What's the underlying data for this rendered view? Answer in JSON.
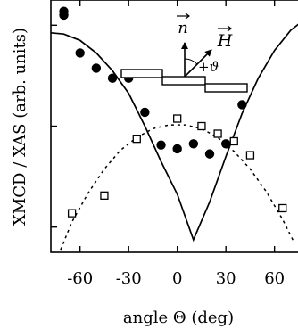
{
  "chart_data": {
    "type": "scatter",
    "xlabel": "angle Θ (deg)",
    "ylabel": "XMCD / XAS (arb. units)",
    "xlim": [
      -78,
      80
    ],
    "ylim": [
      0.0,
      1.0
    ],
    "x_ticks": [
      -60,
      -30,
      0,
      30,
      60
    ],
    "x_tick_labels": [
      "-60",
      "-30",
      "0",
      "30",
      "60"
    ],
    "y_ticks": [
      0.1,
      0.5,
      0.9
    ],
    "y_tick_labels": [],
    "grid": false,
    "series": [
      {
        "marker": "filled-circle",
        "points": [
          {
            "x": -70,
            "y": 0.955
          },
          {
            "x": -70,
            "y": 0.94
          },
          {
            "x": -60,
            "y": 0.79
          },
          {
            "x": -50,
            "y": 0.73
          },
          {
            "x": -40,
            "y": 0.69
          },
          {
            "x": -30,
            "y": 0.69
          },
          {
            "x": -20,
            "y": 0.555
          },
          {
            "x": -10,
            "y": 0.425
          },
          {
            "x": 0,
            "y": 0.41
          },
          {
            "x": 10,
            "y": 0.43
          },
          {
            "x": 20,
            "y": 0.39
          },
          {
            "x": 30,
            "y": 0.43
          },
          {
            "x": 40,
            "y": 0.585
          }
        ]
      },
      {
        "marker": "open-square",
        "points": [
          {
            "x": -65,
            "y": 0.155
          },
          {
            "x": -45,
            "y": 0.225
          },
          {
            "x": -25,
            "y": 0.45
          },
          {
            "x": 0,
            "y": 0.53
          },
          {
            "x": 15,
            "y": 0.5
          },
          {
            "x": 25,
            "y": 0.47
          },
          {
            "x": 35,
            "y": 0.44
          },
          {
            "x": 45,
            "y": 0.385
          },
          {
            "x": 65,
            "y": 0.175
          }
        ]
      },
      {
        "line": "solid",
        "points": [
          {
            "x": -78,
            "y": 0.87
          },
          {
            "x": -70,
            "y": 0.865
          },
          {
            "x": -60,
            "y": 0.84
          },
          {
            "x": -50,
            "y": 0.79
          },
          {
            "x": -40,
            "y": 0.72
          },
          {
            "x": -30,
            "y": 0.63
          },
          {
            "x": -20,
            "y": 0.5
          },
          {
            "x": -10,
            "y": 0.36
          },
          {
            "x": 0,
            "y": 0.23
          },
          {
            "x": 10,
            "y": 0.05
          },
          {
            "x": 20,
            "y": 0.2
          },
          {
            "x": 30,
            "y": 0.38
          },
          {
            "x": 40,
            "y": 0.55
          },
          {
            "x": 50,
            "y": 0.69
          },
          {
            "x": 60,
            "y": 0.8
          },
          {
            "x": 70,
            "y": 0.88
          },
          {
            "x": 80,
            "y": 0.93
          }
        ]
      },
      {
        "line": "dotted",
        "points": [
          {
            "x": -72,
            "y": 0.01
          },
          {
            "x": -65,
            "y": 0.12
          },
          {
            "x": -55,
            "y": 0.235
          },
          {
            "x": -45,
            "y": 0.33
          },
          {
            "x": -35,
            "y": 0.405
          },
          {
            "x": -25,
            "y": 0.455
          },
          {
            "x": -15,
            "y": 0.49
          },
          {
            "x": -5,
            "y": 0.505
          },
          {
            "x": 5,
            "y": 0.505
          },
          {
            "x": 15,
            "y": 0.49
          },
          {
            "x": 25,
            "y": 0.455
          },
          {
            "x": 35,
            "y": 0.4
          },
          {
            "x": 45,
            "y": 0.33
          },
          {
            "x": 55,
            "y": 0.24
          },
          {
            "x": 65,
            "y": 0.13
          },
          {
            "x": 72,
            "y": 0.04
          }
        ]
      }
    ],
    "inset": {
      "n_label": "n",
      "h_label": "H",
      "angle_label": "+ϑ"
    }
  }
}
